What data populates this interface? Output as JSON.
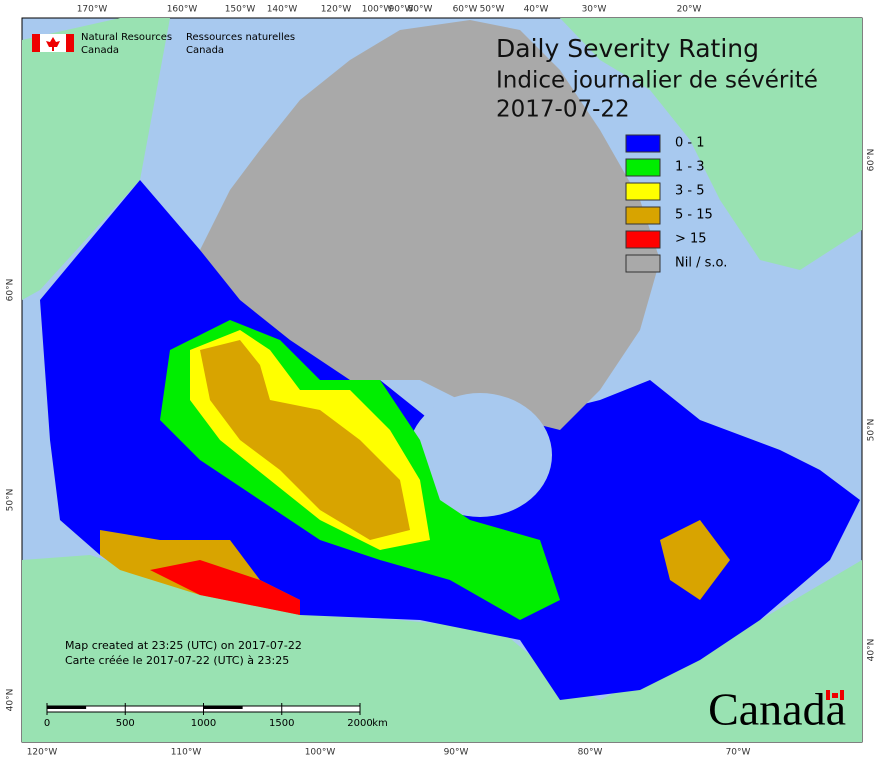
{
  "header": {
    "org_en_1": "Natural Resources",
    "org_en_2": "Canada",
    "org_fr_1": "Ressources naturelles",
    "org_fr_2": "Canada"
  },
  "title": {
    "line1": "Daily Severity Rating",
    "line2": "Indice journalier de sévérité",
    "date": "2017-07-22"
  },
  "legend": [
    {
      "label": "0 - 1",
      "color": "#0000ff"
    },
    {
      "label": "1 - 3",
      "color": "#00ee00"
    },
    {
      "label": "3 - 5",
      "color": "#ffff00"
    },
    {
      "label": "5 - 15",
      "color": "#d8a400"
    },
    {
      "label": "> 15",
      "color": "#ff0000"
    },
    {
      "label": "Nil / s.o.",
      "color": "#a9a9a9"
    }
  ],
  "graticule": {
    "top": [
      "170°W",
      "160°W",
      "150°W",
      "140°W",
      "120°W",
      "100°W",
      "90°W",
      "80°W",
      "60°W",
      "50°W",
      "40°W",
      "30°W",
      "20°W"
    ],
    "bottom": [
      "120°W",
      "110°W",
      "100°W",
      "90°W",
      "80°W",
      "70°W"
    ],
    "left": [
      "60°N",
      "50°N",
      "40°N"
    ],
    "right": [
      "60°N",
      "50°N",
      "40°N"
    ]
  },
  "footer": {
    "created_en": "Map created at 23:25 (UTC) on 2017-07-22",
    "created_fr": "Carte créée le 2017-07-22 (UTC) à 23:25"
  },
  "scale_bar": {
    "ticks": [
      0,
      500,
      1000,
      1500,
      2000
    ],
    "unit": "km"
  },
  "wordmark": "Canada"
}
